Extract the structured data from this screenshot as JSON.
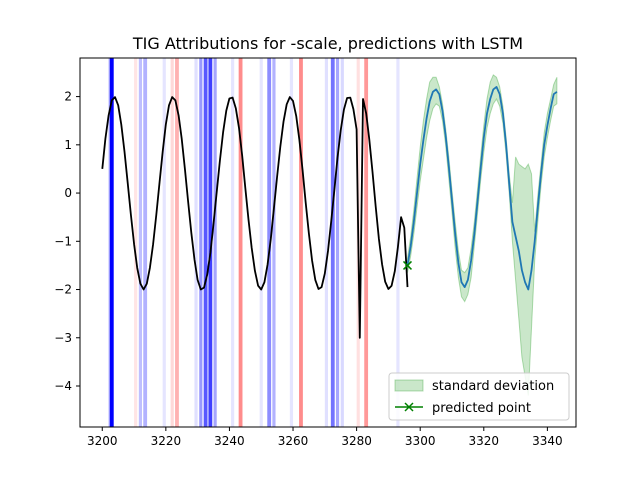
{
  "chart_data": {
    "type": "line",
    "title": "TIG Attributions for -scale, predictions with LSTM",
    "xlabel": "",
    "ylabel": "",
    "xlim": [
      3193,
      3349
    ],
    "ylim": [
      -4.85,
      2.8
    ],
    "xticks": [
      3200,
      3220,
      3240,
      3260,
      3280,
      3300,
      3320,
      3340
    ],
    "yticks": [
      2,
      1,
      0,
      -1,
      -2,
      -3,
      -4
    ],
    "legend": {
      "position": "bottom-right",
      "entries": [
        {
          "label": "standard deviation",
          "color": "#2ca02c",
          "kind": "patch"
        },
        {
          "label": "predicted point",
          "color": "#008000",
          "kind": "line-x"
        }
      ]
    },
    "attribution_bands": [
      {
        "x": 3202.5,
        "w": 1.0,
        "color": "#0000ff",
        "opacity": 0.35
      },
      {
        "x": 3203.0,
        "w": 1.2,
        "color": "#0000ff",
        "opacity": 1.0
      },
      {
        "x": 3210.5,
        "w": 1.0,
        "color": "#ff0000",
        "opacity": 0.1
      },
      {
        "x": 3212.0,
        "w": 1.0,
        "color": "#0000ff",
        "opacity": 0.25
      },
      {
        "x": 3213.5,
        "w": 1.2,
        "color": "#0000ff",
        "opacity": 0.3
      },
      {
        "x": 3219.5,
        "w": 1.0,
        "color": "#0000ff",
        "opacity": 0.1
      },
      {
        "x": 3222.0,
        "w": 1.0,
        "color": "#ff0000",
        "opacity": 0.15
      },
      {
        "x": 3223.5,
        "w": 1.2,
        "color": "#ff0000",
        "opacity": 0.3
      },
      {
        "x": 3229.5,
        "w": 1.0,
        "color": "#0000ff",
        "opacity": 0.12
      },
      {
        "x": 3231.0,
        "w": 1.0,
        "color": "#0000ff",
        "opacity": 0.4
      },
      {
        "x": 3232.5,
        "w": 1.2,
        "color": "#0000ff",
        "opacity": 0.65
      },
      {
        "x": 3234.0,
        "w": 1.2,
        "color": "#0000ff",
        "opacity": 0.75
      },
      {
        "x": 3235.5,
        "w": 1.0,
        "color": "#0000ff",
        "opacity": 0.35
      },
      {
        "x": 3241.0,
        "w": 1.0,
        "color": "#0000ff",
        "opacity": 0.1
      },
      {
        "x": 3243.5,
        "w": 1.2,
        "color": "#ff0000",
        "opacity": 0.45
      },
      {
        "x": 3250.0,
        "w": 1.0,
        "color": "#0000ff",
        "opacity": 0.1
      },
      {
        "x": 3252.5,
        "w": 1.2,
        "color": "#0000ff",
        "opacity": 0.45
      },
      {
        "x": 3254.0,
        "w": 1.0,
        "color": "#0000ff",
        "opacity": 0.3
      },
      {
        "x": 3259.5,
        "w": 1.0,
        "color": "#0000ff",
        "opacity": 0.1
      },
      {
        "x": 3262.5,
        "w": 1.2,
        "color": "#ff0000",
        "opacity": 0.45
      },
      {
        "x": 3270.5,
        "w": 1.0,
        "color": "#0000ff",
        "opacity": 0.12
      },
      {
        "x": 3272.5,
        "w": 1.2,
        "color": "#0000ff",
        "opacity": 0.55
      },
      {
        "x": 3274.0,
        "w": 1.0,
        "color": "#0000ff",
        "opacity": 0.35
      },
      {
        "x": 3275.5,
        "w": 1.0,
        "color": "#0000ff",
        "opacity": 0.15
      },
      {
        "x": 3280.5,
        "w": 1.0,
        "color": "#ff0000",
        "opacity": 0.12
      },
      {
        "x": 3283.0,
        "w": 1.2,
        "color": "#ff0000",
        "opacity": 0.4
      },
      {
        "x": 3293.0,
        "w": 1.0,
        "color": "#0000ff",
        "opacity": 0.1
      }
    ],
    "series": [
      {
        "kind": "line",
        "color": "#000000",
        "x": [
          3200,
          3201,
          3202,
          3203,
          3204,
          3205,
          3206,
          3207,
          3208,
          3209,
          3210,
          3211,
          3212,
          3213,
          3214,
          3215,
          3216,
          3217,
          3218,
          3219,
          3220,
          3221,
          3222,
          3223,
          3224,
          3225,
          3226,
          3227,
          3228,
          3229,
          3230,
          3231,
          3232,
          3233,
          3234,
          3235,
          3236,
          3237,
          3238,
          3239,
          3240,
          3241,
          3242,
          3243,
          3244,
          3245,
          3246,
          3247,
          3248,
          3249,
          3250,
          3251,
          3252,
          3253,
          3254,
          3255,
          3256,
          3257,
          3258,
          3259,
          3260,
          3261,
          3262,
          3263,
          3264,
          3265,
          3266,
          3267,
          3268,
          3269,
          3270,
          3271,
          3272,
          3273,
          3274,
          3275,
          3276,
          3277,
          3278,
          3279,
          3280,
          3281,
          3282,
          3283,
          3284,
          3285,
          3286,
          3287,
          3288,
          3289,
          3290,
          3291,
          3292,
          3293,
          3294,
          3295,
          3296
        ],
        "values": [
          0.5,
          1.13,
          1.61,
          1.92,
          1.99,
          1.82,
          1.42,
          0.86,
          0.21,
          -0.45,
          -1.06,
          -1.55,
          -1.88,
          -2.0,
          -1.88,
          -1.55,
          -1.06,
          -0.45,
          0.21,
          0.86,
          1.42,
          1.82,
          1.99,
          1.92,
          1.61,
          1.13,
          0.5,
          -0.17,
          -0.82,
          -1.38,
          -1.8,
          -2.0,
          -1.96,
          -1.69,
          -1.24,
          -0.64,
          0.02,
          0.67,
          1.26,
          1.71,
          1.96,
          1.98,
          1.76,
          1.35,
          0.77,
          0.11,
          -0.55,
          -1.14,
          -1.61,
          -1.92,
          -2.0,
          -1.85,
          -1.48,
          -0.95,
          -0.32,
          0.34,
          0.96,
          1.48,
          1.84,
          1.99,
          1.91,
          1.6,
          1.1,
          0.47,
          -0.2,
          -0.84,
          -1.4,
          -1.8,
          -1.99,
          -1.95,
          -1.67,
          -1.2,
          -0.59,
          0.07,
          0.73,
          1.3,
          1.73,
          1.97,
          1.98,
          1.74,
          1.32,
          -3.0,
          1.95,
          1.65,
          1.11,
          0.44,
          -0.28,
          -0.95,
          -1.48,
          -1.84,
          -1.99,
          -1.92,
          -1.62,
          -1.12,
          -0.5,
          -0.72,
          -1.95
        ]
      },
      {
        "kind": "line",
        "color": "#1f77b4",
        "x": [
          3296,
          3297,
          3298,
          3299,
          3300,
          3301,
          3302,
          3303,
          3304,
          3305,
          3306,
          3307,
          3308,
          3309,
          3310,
          3311,
          3312,
          3313,
          3314,
          3315,
          3316,
          3317,
          3318,
          3319,
          3320,
          3321,
          3322,
          3323,
          3324,
          3325,
          3326,
          3327,
          3328,
          3329,
          3330,
          3331,
          3332,
          3333,
          3334,
          3335,
          3336,
          3337,
          3338,
          3339,
          3340,
          3341,
          3342,
          3343
        ],
        "values": [
          -1.5,
          -1.1,
          -0.6,
          0.0,
          0.6,
          1.1,
          1.55,
          1.9,
          2.1,
          2.15,
          2.05,
          1.7,
          1.2,
          0.55,
          -0.15,
          -0.85,
          -1.45,
          -1.85,
          -1.95,
          -1.8,
          -1.4,
          -0.85,
          -0.2,
          0.5,
          1.15,
          1.65,
          1.95,
          2.15,
          2.2,
          2.05,
          1.65,
          1.0,
          0.2,
          -0.6,
          -0.9,
          -1.2,
          -1.6,
          -1.85,
          -2.0,
          -1.6,
          -1.0,
          -0.3,
          0.4,
          1.0,
          1.4,
          1.75,
          2.05,
          2.1
        ]
      },
      {
        "kind": "band",
        "color": "#2ca02c",
        "opacity": 0.25,
        "x": [
          3296,
          3297,
          3298,
          3299,
          3300,
          3301,
          3302,
          3303,
          3304,
          3305,
          3306,
          3307,
          3308,
          3309,
          3310,
          3311,
          3312,
          3313,
          3314,
          3315,
          3316,
          3317,
          3318,
          3319,
          3320,
          3321,
          3322,
          3323,
          3324,
          3325,
          3326,
          3327,
          3328,
          3329,
          3330,
          3331,
          3332,
          3333,
          3334,
          3335,
          3336,
          3337,
          3338,
          3339,
          3340,
          3341,
          3342,
          3343
        ],
        "upper": [
          -1.35,
          -0.9,
          -0.35,
          0.3,
          0.95,
          1.5,
          1.95,
          2.3,
          2.4,
          2.4,
          2.2,
          1.85,
          1.35,
          0.75,
          0.05,
          -0.6,
          -1.2,
          -1.6,
          -1.65,
          -1.55,
          -1.15,
          -0.6,
          0.05,
          0.75,
          1.4,
          1.95,
          2.3,
          2.45,
          2.4,
          2.2,
          1.8,
          1.15,
          0.4,
          -0.2,
          0.75,
          0.6,
          0.55,
          0.5,
          0.6,
          0.4,
          -0.8,
          -0.05,
          0.6,
          1.25,
          1.65,
          1.95,
          2.25,
          2.4
        ],
        "lower": [
          -1.65,
          -1.3,
          -0.85,
          -0.3,
          0.25,
          0.7,
          1.15,
          1.5,
          1.75,
          1.85,
          1.8,
          1.5,
          1.0,
          0.3,
          -0.4,
          -1.15,
          -1.75,
          -2.15,
          -2.25,
          -2.1,
          -1.75,
          -1.1,
          -0.45,
          0.25,
          0.85,
          1.35,
          1.65,
          1.85,
          1.95,
          1.8,
          1.45,
          0.8,
          0.0,
          -1.0,
          -1.8,
          -2.6,
          -3.4,
          -3.8,
          -4.2,
          -2.8,
          -1.4,
          -0.6,
          0.15,
          0.75,
          1.15,
          1.5,
          1.8,
          1.85
        ]
      },
      {
        "kind": "point",
        "color": "#008000",
        "marker": "x",
        "x": [
          3296
        ],
        "values": [
          -1.5
        ]
      }
    ]
  }
}
